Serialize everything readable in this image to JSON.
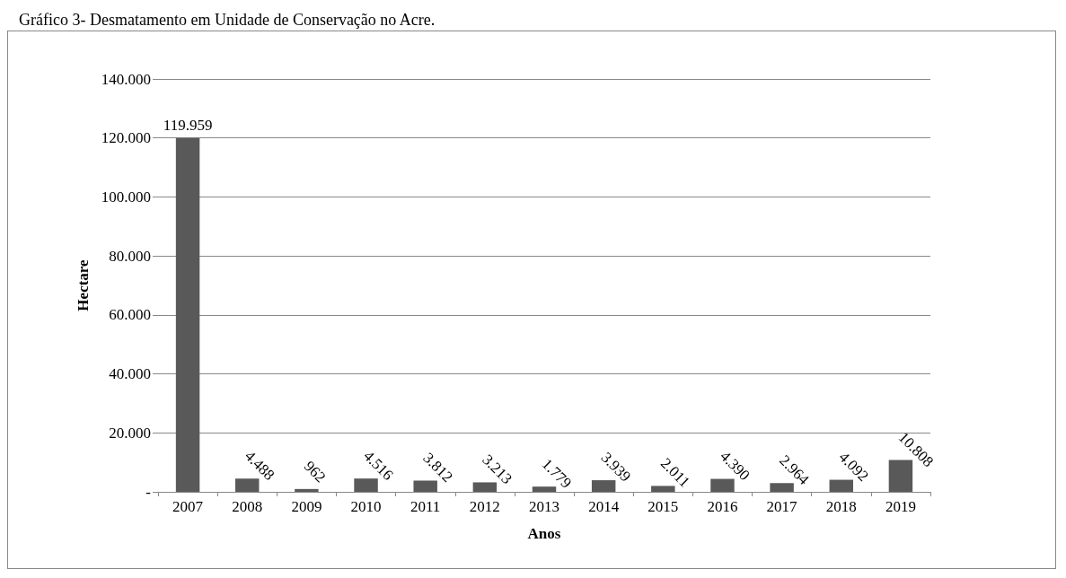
{
  "chart_data": {
    "type": "bar",
    "title": "Gráfico 3- Desmatamento em Unidade de Conservação no Acre.",
    "xlabel": "Anos",
    "ylabel": "Hectare",
    "categories": [
      "2007",
      "2008",
      "2009",
      "2010",
      "2011",
      "2012",
      "2013",
      "2014",
      "2015",
      "2016",
      "2017",
      "2018",
      "2019"
    ],
    "values": [
      119959,
      4488,
      962,
      4516,
      3812,
      3213,
      1779,
      3939,
      2011,
      4390,
      2964,
      4092,
      10808
    ],
    "value_labels": [
      "119.959",
      "4.488",
      "962",
      "4.516",
      "3.812",
      "3.213",
      "1.779",
      "3.939",
      "2.011",
      "4.390",
      "2.964",
      "4.092",
      "10.808"
    ],
    "color": "#595959",
    "ylim": [
      0,
      140000
    ],
    "yticks": [
      {
        "value": 0,
        "label": "-"
      },
      {
        "value": 20000,
        "label": "20.000"
      },
      {
        "value": 40000,
        "label": "40.000"
      },
      {
        "value": 60000,
        "label": "60.000"
      },
      {
        "value": 80000,
        "label": "80.000"
      },
      {
        "value": 100000,
        "label": "100.000"
      },
      {
        "value": 120000,
        "label": "120.000"
      },
      {
        "value": 140000,
        "label": "140.000"
      }
    ],
    "grid": "y"
  }
}
